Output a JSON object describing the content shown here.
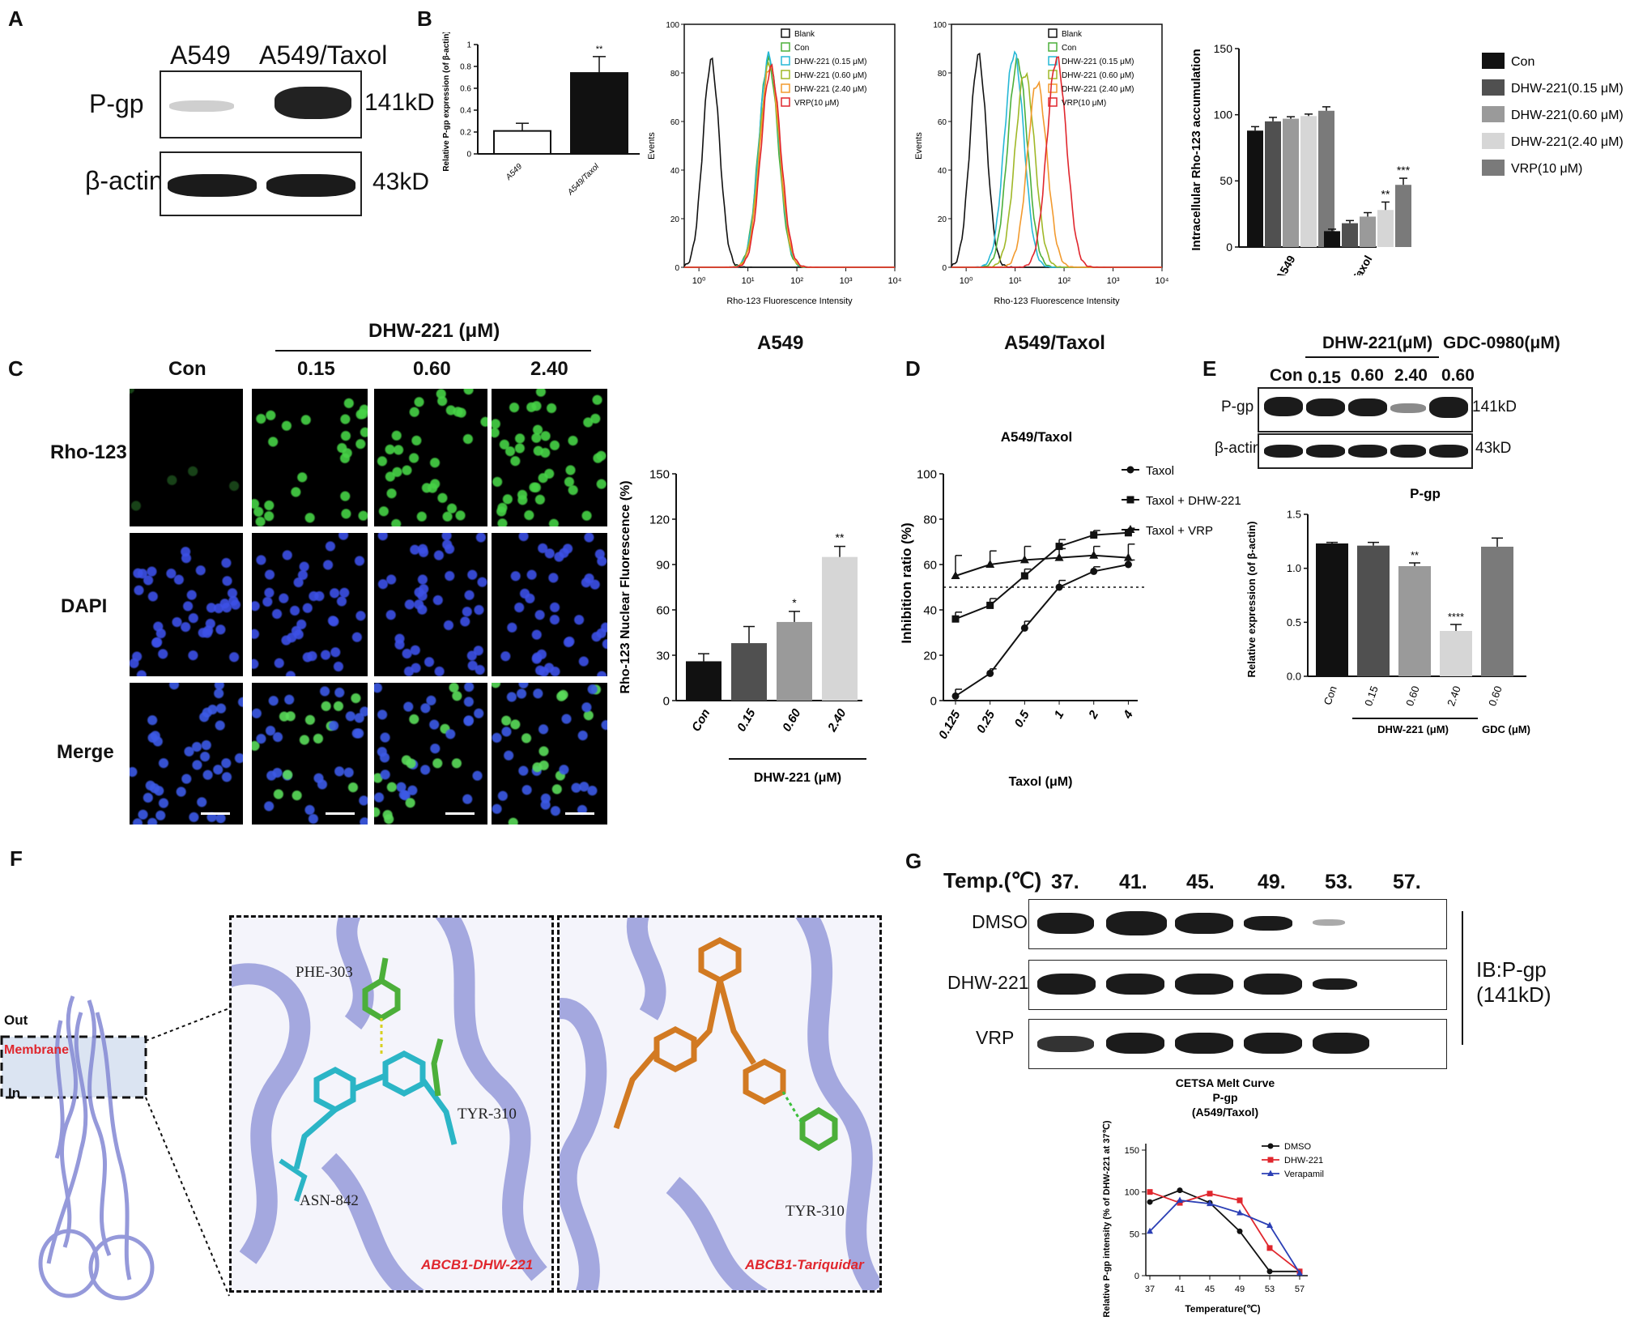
{
  "panel_letters": {
    "a": "A",
    "b": "B",
    "c": "C",
    "d": "D",
    "e": "E",
    "f": "F",
    "g": "G"
  },
  "colors": {
    "cyan": "#26b8d6",
    "green": "#4caf3a",
    "olive": "#a0b828",
    "orange": "#f29a2e",
    "red": "#e0262d",
    "blue_protein": "#8a8fd6",
    "ligand_cyan": "#2bb5c6",
    "ligand_orange": "#d27a22",
    "label_red": "#e0262d"
  },
  "panel_a": {
    "col1": "A549",
    "col2": "A549/Taxol",
    "row1": "P-gp",
    "row2": "β-actin",
    "kd1": "141kD",
    "kd2": "43kD"
  },
  "panel_b": {
    "mid_labels": {
      "a549": "A549",
      "taxol": "A549/Taxol"
    },
    "hist_legend": [
      "Blank",
      "Con",
      "DHW-221 (0.15 μM)",
      "DHW-221 (0.60 μM)",
      "DHW-221 (2.40 μM)",
      "VRP(10 μM)"
    ],
    "hist_legend_colors": [
      "#111111",
      "#4caf3a",
      "#26b8d6",
      "#a0b828",
      "#f29a2e",
      "#e0262d"
    ],
    "hist_xlabel": "Rho-123 Fluorescence Intensity",
    "hist_ylabel": "Events",
    "legend4": [
      "Con",
      "DHW-221(0.15 μM)",
      "DHW-221(0.60 μM)",
      "DHW-221(2.40 μM)",
      "VRP(10 μM)"
    ],
    "legend4_colors": [
      "#111111",
      "#505050",
      "#9a9a9a",
      "#d6d6d6",
      "#7a7a7a"
    ]
  },
  "panel_c": {
    "treatment_header": "DHW-221 (μM)",
    "cols": [
      "Con",
      "0.15",
      "0.60",
      "2.40"
    ],
    "rows": [
      "Rho-123",
      "DAPI",
      "Merge"
    ]
  },
  "panel_e": {
    "header1": "DHW-221(μM)",
    "header2": "GDC-0980(μM)",
    "lanes": [
      "Con",
      "0.15",
      "0.60",
      "2.40",
      "0.60"
    ],
    "row1": "P-gp",
    "row2": "β-actin",
    "kd1": "141kD",
    "kd2": "43kD"
  },
  "panel_f": {
    "out": "Out",
    "membrane": "Membrane",
    "in": "In",
    "res1": "PHE-303",
    "res2": "TYR-310",
    "res3": "ASN-842",
    "res4": "TYR-310",
    "cap1": "ABCB1-DHW-221",
    "cap2": "ABCB1-Tariquidar"
  },
  "panel_g": {
    "temp_label": "Temp.(℃)",
    "temps": [
      "37.",
      "41.",
      "45.",
      "49.",
      "53.",
      "57."
    ],
    "rows": [
      "DMSO",
      "DHW-221",
      "VRP"
    ],
    "ib": "IB:P-gp (141kD)"
  },
  "chart_data": [
    {
      "id": "b1",
      "type": "bar",
      "ylabel": "Relative P-gp expression (of β-actin)",
      "categories": [
        "A549",
        "A549/Taxol"
      ],
      "values": [
        0.21,
        0.74
      ],
      "errors": [
        0.07,
        0.15
      ],
      "yticks": [
        "0",
        "0.2",
        "0.4",
        "0.6",
        "0.8",
        "1"
      ],
      "ylim": [
        0,
        1.0
      ],
      "annotations": [
        "",
        "**"
      ]
    },
    {
      "id": "b2",
      "type": "line",
      "title": "A549",
      "xlabel": "Rho-123 Fluorescence Intensity",
      "ylabel": "Events",
      "xscale": "log",
      "xticks": [
        "10⁰",
        "10¹",
        "10²",
        "10³",
        "10⁴"
      ],
      "yticks": [
        "0",
        "20",
        "40",
        "60",
        "80",
        "100"
      ],
      "ylim": [
        0,
        100
      ],
      "series": [
        {
          "name": "Blank",
          "color": "#111111",
          "peak_log": 0.25,
          "peak": 85
        },
        {
          "name": "Con",
          "color": "#4caf3a",
          "peak_log": 1.42,
          "peak": 85
        },
        {
          "name": "DHW-221 (0.15 μM)",
          "color": "#26b8d6",
          "peak_log": 1.43,
          "peak": 87
        },
        {
          "name": "DHW-221 (0.60 μM)",
          "color": "#a0b828",
          "peak_log": 1.44,
          "peak": 84
        },
        {
          "name": "DHW-221 (2.40 μM)",
          "color": "#f29a2e",
          "peak_log": 1.45,
          "peak": 83
        },
        {
          "name": "VRP(10 μM)",
          "color": "#e0262d",
          "peak_log": 1.47,
          "peak": 82
        }
      ]
    },
    {
      "id": "b3",
      "type": "line",
      "title": "A549/Taxol",
      "xlabel": "Rho-123 Fluorescence Intensity",
      "ylabel": "Events",
      "xscale": "log",
      "xticks": [
        "10⁰",
        "10¹",
        "10²",
        "10³",
        "10⁴"
      ],
      "yticks": [
        "0",
        "20",
        "40",
        "60",
        "80",
        "100"
      ],
      "ylim": [
        0,
        100
      ],
      "series": [
        {
          "name": "Blank",
          "color": "#111111",
          "peak_log": 0.25,
          "peak": 87
        },
        {
          "name": "Con",
          "color": "#4caf3a",
          "peak_log": 1.05,
          "peak": 85
        },
        {
          "name": "DHW-221 (0.15 μM)",
          "color": "#26b8d6",
          "peak_log": 0.98,
          "peak": 88
        },
        {
          "name": "DHW-221 (0.60 μM)",
          "color": "#a0b828",
          "peak_log": 1.2,
          "peak": 80
        },
        {
          "name": "DHW-221 (2.40 μM)",
          "color": "#f29a2e",
          "peak_log": 1.45,
          "peak": 76
        },
        {
          "name": "VRP(10 μM)",
          "color": "#e0262d",
          "peak_log": 1.85,
          "peak": 86
        }
      ]
    },
    {
      "id": "b4",
      "type": "bar",
      "ylabel": "Intracellular Rho-123 accumulation",
      "categories": [
        "A549",
        "A549/Taxol"
      ],
      "yticks": [
        "0",
        "50",
        "100",
        "150"
      ],
      "ylim": [
        0,
        150
      ],
      "series": [
        {
          "name": "Con",
          "color": "#111111",
          "values": [
            88,
            12
          ],
          "errors": [
            3,
            1.5
          ],
          "annotations": [
            "",
            ""
          ]
        },
        {
          "name": "DHW-221(0.15 μM)",
          "color": "#505050",
          "values": [
            95,
            18
          ],
          "errors": [
            3,
            2
          ],
          "annotations": [
            "",
            ""
          ]
        },
        {
          "name": "DHW-221(0.60 μM)",
          "color": "#9a9a9a",
          "values": [
            97,
            23
          ],
          "errors": [
            1.5,
            3
          ],
          "annotations": [
            "",
            ""
          ]
        },
        {
          "name": "DHW-221(2.40 μM)",
          "color": "#d6d6d6",
          "values": [
            99,
            28
          ],
          "errors": [
            1.5,
            6
          ],
          "annotations": [
            "",
            "**"
          ]
        },
        {
          "name": "VRP(10 μM)",
          "color": "#7a7a7a",
          "values": [
            103,
            47
          ],
          "errors": [
            3,
            5
          ],
          "annotations": [
            "",
            "***"
          ]
        }
      ]
    },
    {
      "id": "c",
      "type": "bar",
      "ylabel": "Rho-123 Nuclear Fluorescence (%)",
      "categories": [
        "Con",
        "0.15",
        "0.60",
        "2.40"
      ],
      "xgroup_label": "DHW-221 (μM)",
      "values": [
        26,
        38,
        52,
        95
      ],
      "errors": [
        5,
        11,
        7,
        7
      ],
      "colors": [
        "#111111",
        "#505050",
        "#9a9a9a",
        "#d6d6d6"
      ],
      "annotations": [
        "",
        "",
        "*",
        "**"
      ],
      "yticks": [
        "0",
        "30",
        "60",
        "90",
        "120",
        "150"
      ],
      "ylim": [
        0,
        150
      ]
    },
    {
      "id": "d",
      "type": "line",
      "title": "A549/Taxol",
      "xlabel": "Taxol (μM)",
      "ylabel": "Inhibition ratio (%)",
      "categories": [
        "0.125",
        "0.25",
        "0.5",
        "1",
        "2",
        "4"
      ],
      "yticks": [
        "0",
        "20",
        "40",
        "60",
        "80",
        "100"
      ],
      "ylim": [
        0,
        100
      ],
      "reference_line": 50,
      "series": [
        {
          "name": "Taxol",
          "marker": "circle",
          "values": [
            2,
            12,
            32,
            50,
            57,
            60
          ],
          "errors": [
            3,
            2,
            3,
            3,
            2,
            2
          ]
        },
        {
          "name": "Taxol + DHW-221",
          "marker": "square",
          "values": [
            36,
            42,
            55,
            68,
            73,
            74
          ],
          "errors": [
            3,
            3,
            3,
            3,
            2,
            2
          ]
        },
        {
          "name": "Taxol + VRP",
          "marker": "triangle",
          "values": [
            55,
            60,
            62,
            63,
            64,
            63
          ],
          "errors": [
            9,
            6,
            6,
            4,
            4,
            6
          ]
        }
      ]
    },
    {
      "id": "e",
      "type": "bar",
      "title": "P-gp",
      "ylabel": "Relative expression (of β-actin)",
      "categories": [
        "Con",
        "0.15",
        "0.60",
        "2.40",
        "0.60"
      ],
      "group_labels": [
        "DHW-221 (μM)",
        "GDC (μM)"
      ],
      "values": [
        1.23,
        1.21,
        1.02,
        0.42,
        1.2
      ],
      "errors": [
        0.01,
        0.03,
        0.03,
        0.06,
        0.08
      ],
      "colors": [
        "#111111",
        "#505050",
        "#9a9a9a",
        "#d6d6d6",
        "#7a7a7a"
      ],
      "annotations": [
        "",
        "",
        "**",
        "****",
        ""
      ],
      "yticks": [
        "0.0",
        "0.5",
        "1.0",
        "1.5"
      ],
      "ylim": [
        0,
        1.5
      ]
    },
    {
      "id": "g",
      "type": "line",
      "title": "CETSA Melt Curve",
      "subtitle": "P-gp",
      "subtitle2": "(A549/Taxol)",
      "xlabel": "Temperature(℃)",
      "ylabel": "Relative P-gp intensity (% of DHW-221 at 37℃)",
      "x": [
        37,
        41,
        45,
        49,
        53,
        57
      ],
      "xticks": [
        "37",
        "41",
        "45",
        "49",
        "53",
        "57"
      ],
      "yticks": [
        "0",
        "50",
        "100",
        "150"
      ],
      "ylim": [
        0,
        150
      ],
      "series": [
        {
          "name": "DMSO",
          "color": "#111111",
          "marker": "circle",
          "values": [
            88,
            102,
            87,
            53,
            5,
            5
          ]
        },
        {
          "name": "DHW-221",
          "color": "#e0262d",
          "marker": "square",
          "values": [
            100,
            87,
            98,
            90,
            33,
            5
          ]
        },
        {
          "name": "Verapamil",
          "color": "#2b3fb5",
          "marker": "triangle",
          "values": [
            53,
            90,
            86,
            75,
            60,
            3
          ]
        }
      ]
    }
  ]
}
